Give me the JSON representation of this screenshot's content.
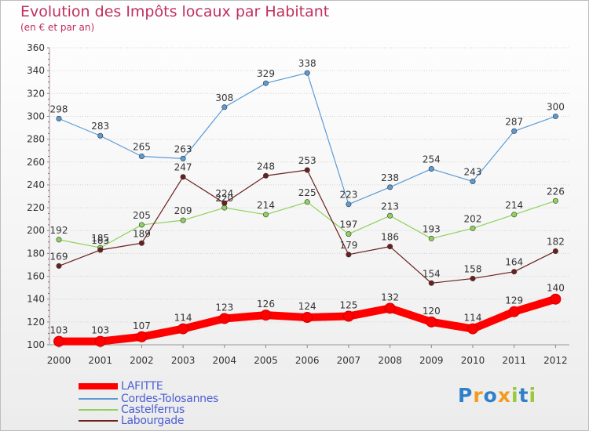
{
  "chart_data": {
    "type": "line",
    "title": "Evolution des Impôts locaux par Habitant",
    "subtitle": "(en € et par an)",
    "categories": [
      "2000",
      "2001",
      "2002",
      "2003",
      "2004",
      "2005",
      "2006",
      "2007",
      "2008",
      "2009",
      "2010",
      "2011",
      "2012"
    ],
    "ylim": [
      100,
      360
    ],
    "yticks": [
      100,
      120,
      140,
      160,
      180,
      200,
      220,
      240,
      260,
      280,
      300,
      320,
      340,
      360
    ],
    "grid": true,
    "legend_position": "bottom-left",
    "series": [
      {
        "name": "LAFITTE",
        "color": "#ff0000",
        "values": [
          103,
          103,
          107,
          114,
          123,
          126,
          124,
          125,
          132,
          120,
          114,
          129,
          140
        ]
      },
      {
        "name": "Cordes-Tolosannes",
        "color": "#5b9bd5",
        "values": [
          298,
          283,
          265,
          263,
          308,
          329,
          338,
          223,
          238,
          254,
          243,
          287,
          300
        ]
      },
      {
        "name": "Castelferrus",
        "color": "#8fd15c",
        "values": [
          192,
          185,
          205,
          209,
          220,
          214,
          225,
          197,
          213,
          193,
          202,
          214,
          226
        ]
      },
      {
        "name": "Labourgade",
        "color": "#6b1f1f",
        "values": [
          169,
          183,
          189,
          247,
          224,
          248,
          253,
          179,
          186,
          154,
          158,
          164,
          182
        ]
      }
    ]
  },
  "logo": {
    "text": "Proxiti",
    "letters": [
      {
        "char": "P",
        "color": "#2f7fc9"
      },
      {
        "char": "r",
        "color": "#f39b1f"
      },
      {
        "char": "o",
        "color": "#2f7fc9"
      },
      {
        "char": "x",
        "color": "#f39b1f"
      },
      {
        "char": "i",
        "color": "#9ac93b"
      },
      {
        "char": "t",
        "color": "#2f7fc9"
      },
      {
        "char": "i",
        "color": "#9ac93b"
      }
    ]
  }
}
